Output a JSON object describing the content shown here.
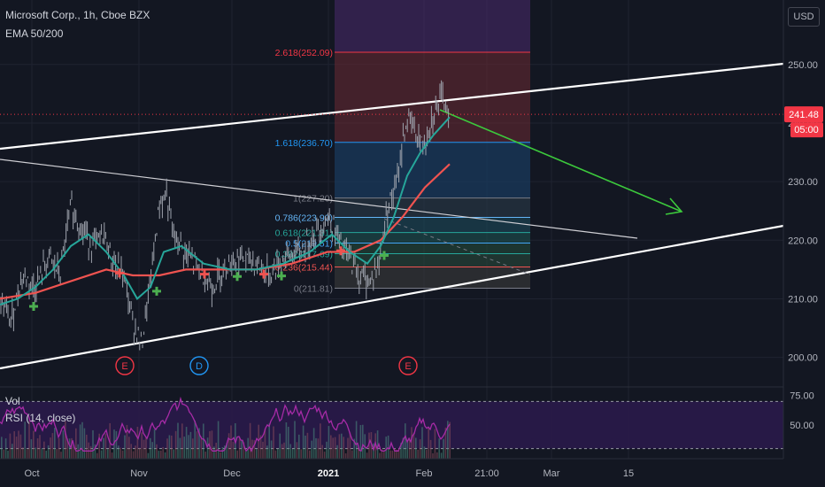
{
  "header": {
    "symbol": "Microsoft Corp., 1h, Cboe BZX",
    "indicator": "EMA 50/200",
    "currency": "USD"
  },
  "colors": {
    "background": "#131722",
    "candles": "#9ea3ad",
    "ema50": "#26a69a",
    "ema200": "#ef5350",
    "trendline": "#ffffff",
    "arrow": "#3cc93c",
    "rsi": "#a62ba6",
    "price_line": "#f23645"
  },
  "chart_data": [
    {
      "type": "line",
      "title": "Microsoft Corp., 1h, Cboe BZX",
      "legend": [
        "EMA 50/200"
      ],
      "x_ticks": [
        "Oct",
        "Nov",
        "Dec",
        "2021",
        "Feb",
        "21:00",
        "Mar",
        "15"
      ],
      "y_ticks": [
        200,
        210,
        220,
        230,
        240,
        250
      ],
      "ylim": [
        194.5,
        261
      ],
      "last_price": "241.48",
      "countdown": "05:00",
      "fib_levels": [
        {
          "label": "2.618(252.09)",
          "value": 252.09
        },
        {
          "label": "1.618(236.70)",
          "value": 236.7
        },
        {
          "label": "1(227.20)",
          "value": 227.2
        },
        {
          "label": "0.786(223.90)",
          "value": 223.9
        },
        {
          "label": "0.618(221.31)",
          "value": 221.31
        },
        {
          "label": "0.5(219.51)",
          "value": 219.51
        },
        {
          "label": "0.382(217.69)",
          "value": 217.69
        },
        {
          "label": "0.236(215.44)",
          "value": 215.44
        },
        {
          "label": "0(211.81)",
          "value": 211.81
        }
      ],
      "price_path": [
        [
          0,
          210
        ],
        [
          12,
          206
        ],
        [
          25,
          214
        ],
        [
          40,
          212
        ],
        [
          55,
          217
        ],
        [
          68,
          214
        ],
        [
          80,
          226
        ],
        [
          92,
          222
        ],
        [
          105,
          219
        ],
        [
          118,
          221
        ],
        [
          128,
          216
        ],
        [
          140,
          214
        ],
        [
          150,
          206
        ],
        [
          160,
          202
        ],
        [
          170,
          213
        ],
        [
          180,
          226
        ],
        [
          188,
          228
        ],
        [
          195,
          221
        ],
        [
          208,
          218
        ],
        [
          225,
          215
        ],
        [
          240,
          212
        ],
        [
          255,
          216
        ],
        [
          270,
          217
        ],
        [
          290,
          216
        ],
        [
          305,
          214
        ],
        [
          320,
          217
        ],
        [
          340,
          218
        ],
        [
          355,
          221
        ],
        [
          372,
          224
        ],
        [
          385,
          219
        ],
        [
          395,
          217
        ],
        [
          405,
          214
        ],
        [
          418,
          213
        ],
        [
          428,
          216
        ],
        [
          438,
          226
        ],
        [
          448,
          229
        ],
        [
          456,
          238
        ],
        [
          462,
          241
        ],
        [
          470,
          238
        ],
        [
          478,
          236
        ],
        [
          488,
          241
        ],
        [
          498,
          244
        ],
        [
          508,
          242
        ]
      ],
      "ema50_path": [
        [
          0,
          209
        ],
        [
          20,
          210
        ],
        [
          40,
          212
        ],
        [
          60,
          215
        ],
        [
          80,
          219
        ],
        [
          100,
          221
        ],
        [
          120,
          218
        ],
        [
          140,
          214
        ],
        [
          155,
          210
        ],
        [
          170,
          212
        ],
        [
          185,
          218
        ],
        [
          205,
          219
        ],
        [
          230,
          216
        ],
        [
          260,
          215
        ],
        [
          290,
          215
        ],
        [
          320,
          216
        ],
        [
          350,
          218
        ],
        [
          375,
          221
        ],
        [
          395,
          218
        ],
        [
          415,
          216
        ],
        [
          430,
          219
        ],
        [
          445,
          224
        ],
        [
          460,
          231
        ],
        [
          475,
          235
        ],
        [
          490,
          238
        ],
        [
          508,
          241
        ]
      ],
      "ema200_path": [
        [
          0,
          210
        ],
        [
          40,
          211
        ],
        [
          80,
          213
        ],
        [
          120,
          215
        ],
        [
          150,
          214
        ],
        [
          180,
          214
        ],
        [
          210,
          215
        ],
        [
          250,
          215
        ],
        [
          290,
          215
        ],
        [
          330,
          216
        ],
        [
          370,
          218
        ],
        [
          400,
          218
        ],
        [
          430,
          220
        ],
        [
          455,
          224
        ],
        [
          480,
          229
        ],
        [
          508,
          233
        ]
      ],
      "markers": [
        {
          "x": 38,
          "y": 208.7
        },
        {
          "x": 135,
          "y": 214.4
        },
        {
          "x": 177,
          "y": 211.3
        },
        {
          "x": 231,
          "y": 214.2
        },
        {
          "x": 268,
          "y": 213.8
        },
        {
          "x": 298,
          "y": 214.2
        },
        {
          "x": 318,
          "y": 213.9
        },
        {
          "x": 385,
          "y": 218.2
        },
        {
          "x": 434,
          "y": 217.4
        }
      ],
      "events": [
        {
          "label": "E",
          "x": 141
        },
        {
          "label": "D",
          "x": 225
        },
        {
          "label": "E",
          "x": 461
        }
      ]
    },
    {
      "type": "line",
      "legend": [
        "Vol",
        "RSI (14, close)"
      ],
      "y_ticks": [
        75,
        50
      ],
      "ylim": [
        20,
        80
      ],
      "bands": [
        30,
        70
      ]
    }
  ]
}
